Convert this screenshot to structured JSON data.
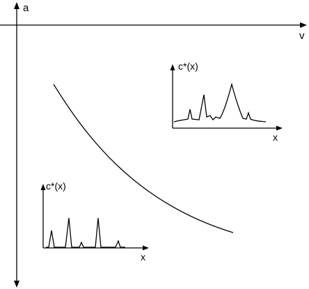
{
  "main_axes": {
    "vertical_label": "a",
    "horizontal_label": "v"
  },
  "inset_right": {
    "y_label": "c*(x)",
    "x_label": "x"
  },
  "inset_left": {
    "y_label": "c*(x)",
    "x_label": "x"
  },
  "colors": {
    "line": "#000000",
    "background": "#ffffff"
  }
}
